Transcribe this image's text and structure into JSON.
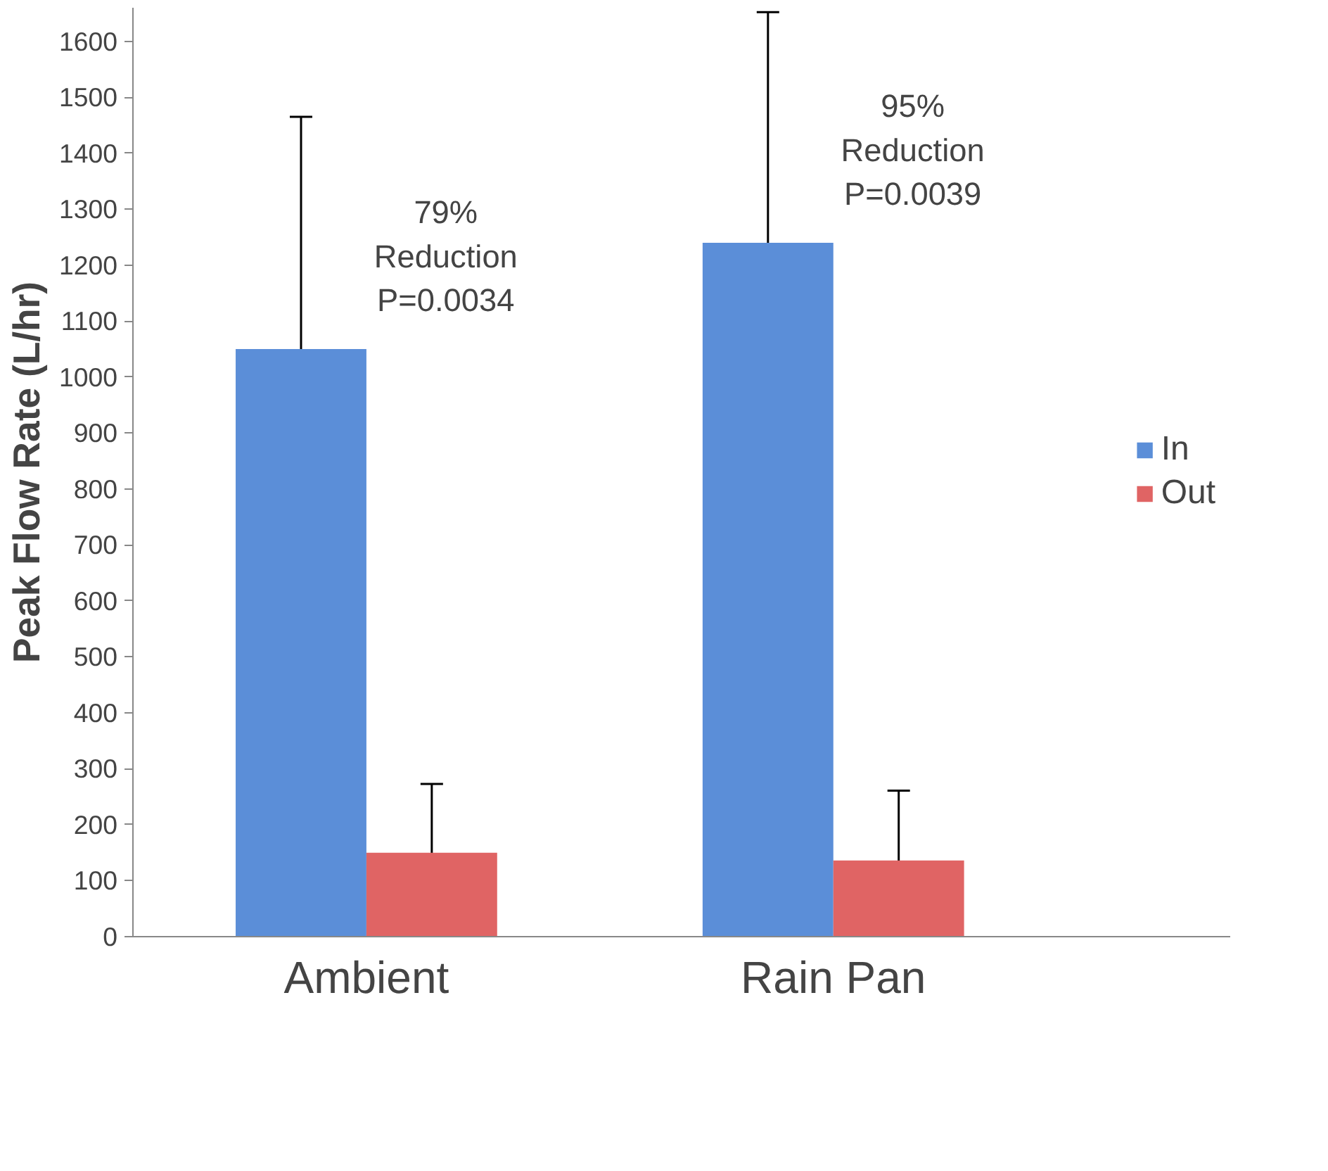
{
  "chart_data": {
    "type": "bar",
    "ylabel": "Peak Flow Rate (L/hr)",
    "categories": [
      "Ambient",
      "Rain Pan"
    ],
    "series": [
      {
        "name": "In",
        "color": "#5b8ed8",
        "values": [
          1050,
          1240
        ],
        "errors": [
          415,
          412
        ]
      },
      {
        "name": "Out",
        "color": "#e06464",
        "values": [
          150,
          136
        ],
        "errors": [
          123,
          125
        ]
      }
    ],
    "ylim": [
      0,
      1660
    ],
    "yticks": [
      0,
      100,
      200,
      300,
      400,
      500,
      600,
      700,
      800,
      900,
      1000,
      1100,
      1200,
      1300,
      1400,
      1500,
      1600
    ],
    "grid": false,
    "legend": "right",
    "annotations": [
      "79%\nReduction\nP=0.0034",
      "95%\nReduction\nP=0.0039"
    ]
  }
}
